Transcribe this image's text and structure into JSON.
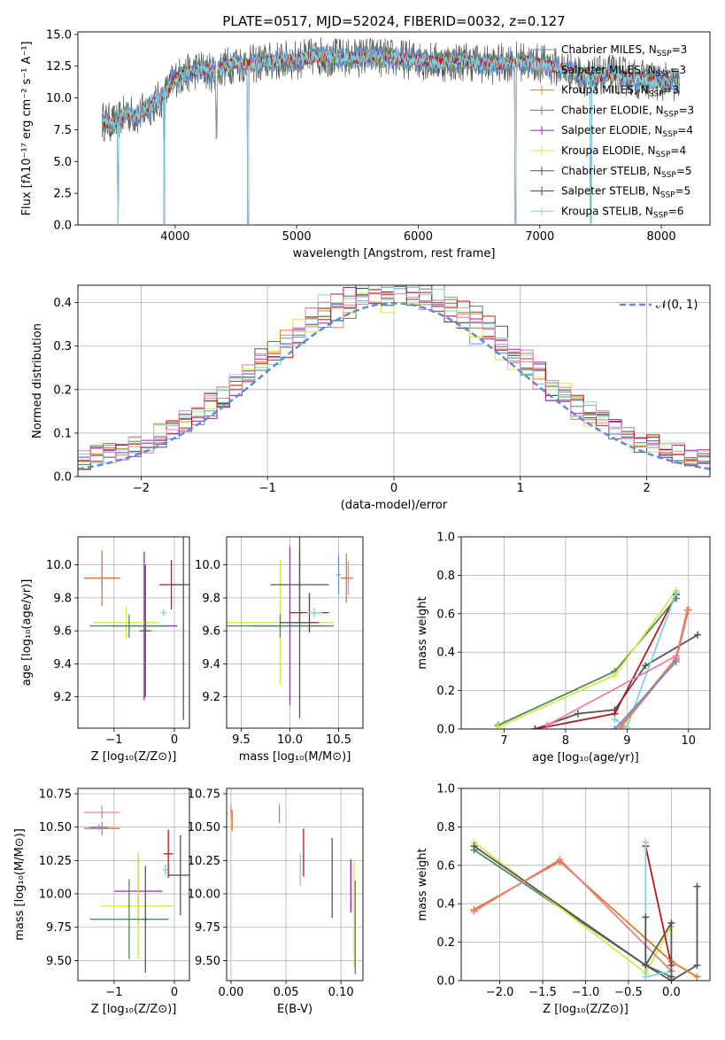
{
  "colors": {
    "chabrier_miles": "#6b8fd6",
    "salpeter_miles": "#e87f7f",
    "kroupa_miles": "#e07b28",
    "chabrier_elodie": "#4e8a55",
    "salpeter_elodie": "#9b25b5",
    "kroupa_elodie": "#d6e84a",
    "chabrier_stelib": "#555555",
    "salpeter_stelib": "#b31b1b",
    "kroupa_stelib": "#78d6e0",
    "gauss": "#5f8ad8",
    "pink": "#e87fb0"
  },
  "chart_data": [
    {
      "id": "spectrum",
      "type": "line",
      "title": "PLATE=0517, MJD=52024, FIBERID=0032, z=0.127",
      "xlabel": "wavelength [Angstrom, rest frame]",
      "ylabel": "Flux [fλ10⁻¹⁷ erg cm⁻² s⁻¹ A⁻¹]",
      "xlim": [
        3200,
        8400
      ],
      "ylim": [
        0,
        15.2
      ],
      "xticks": [
        "4000",
        "5000",
        "6000",
        "7000",
        "8000"
      ],
      "yticks": [
        "0.0",
        "2.5",
        "5.0",
        "7.5",
        "10.0",
        "12.5",
        "15.0"
      ],
      "legend_position": "right",
      "legend": [
        "Chabrier MILES, N_SSP=3",
        "Salpeter MILES, N_SSP=3",
        "Kroupa MILES, N_SSP=3",
        "Chabrier ELODIE, N_SSP=3",
        "Salpeter ELODIE, N_SSP=4",
        "Kroupa ELODIE, N_SSP=4",
        "Chabrier STELIB, N_SSP=5",
        "Salpeter STELIB, N_SSP=5",
        "Kroupa STELIB, N_SSP=6"
      ],
      "continuum": [
        [
          3400,
          8.2
        ],
        [
          3500,
          8.0
        ],
        [
          3600,
          8.8
        ],
        [
          3700,
          8.6
        ],
        [
          3800,
          9.4
        ],
        [
          3900,
          10.0
        ],
        [
          4000,
          11.6
        ],
        [
          4100,
          11.9
        ],
        [
          4200,
          12.3
        ],
        [
          4300,
          12.0
        ],
        [
          4400,
          12.4
        ],
        [
          4500,
          12.8
        ],
        [
          4600,
          12.6
        ],
        [
          4800,
          12.9
        ],
        [
          5000,
          13.0
        ],
        [
          5200,
          13.3
        ],
        [
          5400,
          13.1
        ],
        [
          5600,
          13.3
        ],
        [
          5800,
          13.1
        ],
        [
          6000,
          13.0
        ],
        [
          6200,
          12.8
        ],
        [
          6400,
          12.9
        ],
        [
          6600,
          12.6
        ],
        [
          6800,
          12.9
        ],
        [
          7000,
          12.7
        ],
        [
          7200,
          12.3
        ],
        [
          7400,
          11.6
        ],
        [
          7600,
          11.9
        ],
        [
          7800,
          11.5
        ],
        [
          8000,
          11.3
        ],
        [
          8150,
          11.0
        ]
      ],
      "dips": [
        [
          3530,
          0.1
        ],
        [
          3910,
          0.1
        ],
        [
          4340,
          6.8
        ],
        [
          4600,
          0.1
        ],
        [
          6800,
          0.1
        ],
        [
          7420,
          0.1
        ]
      ]
    },
    {
      "id": "residuals",
      "type": "histogram",
      "xlabel": "(data-model)/error",
      "ylabel": "Normed distribution",
      "xlim": [
        -2.5,
        2.5
      ],
      "ylim": [
        0,
        0.44
      ],
      "xticks": [
        "−2",
        "−1",
        "0",
        "1",
        "2"
      ],
      "yticks": [
        "0.0",
        "0.1",
        "0.2",
        "0.3",
        "0.4"
      ],
      "gauss_label": "𝒩(0, 1)",
      "bin_width": 0.1,
      "grid": true
    },
    {
      "id": "age_vs_Z",
      "type": "errorbar",
      "xlabel": "Z [log₁₀(Z/Z⊙)]",
      "ylabel": "age  [log₁₀(age/yr)]",
      "xlim": [
        -1.6,
        0.25
      ],
      "ylim": [
        9.01,
        10.17
      ],
      "xticks": [
        "−1",
        "0"
      ],
      "xtickvals": [
        -1,
        0
      ],
      "yticks": [
        "9.2",
        "9.4",
        "9.6",
        "9.8",
        "10.0"
      ],
      "ytickvals": [
        9.2,
        9.4,
        9.6,
        9.8,
        10.0
      ],
      "points": [
        {
          "c": "pink",
          "x": -1.2,
          "xe": 0.3,
          "y": 9.92,
          "ye": 0.07
        },
        {
          "c": "kroupa_miles",
          "x": -1.2,
          "xe": 0.3,
          "y": 9.92,
          "ye": 0.17
        },
        {
          "c": "salpeter_elodie",
          "x": -0.5,
          "xe": 0.55,
          "y": 9.63,
          "ye": 0.45
        },
        {
          "c": "kroupa_elodie",
          "x": -0.8,
          "xe": 0.55,
          "y": 9.65,
          "ye": 0.1
        },
        {
          "c": "chabrier_elodie",
          "x": -0.75,
          "xe": 0.65,
          "y": 9.63,
          "ye": 0.07
        },
        {
          "c": "chabrier_stelib",
          "x": -0.48,
          "xe": 0.1,
          "y": 9.6,
          "ye": 0.4
        },
        {
          "c": "salpeter_stelib",
          "x": -0.05,
          "xe": 0.2,
          "y": 9.88,
          "ye": 0.15
        },
        {
          "c": "chabrier_stelib",
          "x": 0.15,
          "xe": 0.2,
          "y": 9.88,
          "ye": 0.82
        },
        {
          "c": "kroupa_stelib",
          "x": -0.18,
          "xe": 0.05,
          "y": 9.71,
          "ye": 0.02
        }
      ]
    },
    {
      "id": "age_vs_mass",
      "type": "errorbar",
      "xlabel": "mass [log₁₀(M/M⊙)]",
      "ylabel": "",
      "xlim": [
        9.35,
        10.75
      ],
      "ylim": [
        9.01,
        10.17
      ],
      "xticks": [
        "9.5",
        "10.0",
        "10.5"
      ],
      "xtickvals": [
        9.5,
        10.0,
        10.5
      ],
      "yticks": [
        "9.2",
        "9.4",
        "9.6",
        "9.8",
        "10.0"
      ],
      "ytickvals": [
        9.2,
        9.4,
        9.6,
        9.8,
        10.0
      ],
      "points": [
        {
          "c": "pink",
          "x": 10.6,
          "xe": 0.05,
          "y": 9.92,
          "ye": 0.1
        },
        {
          "c": "kroupa_miles",
          "x": 10.58,
          "xe": 0.06,
          "y": 9.92,
          "ye": 0.15
        },
        {
          "c": "kroupa_elodie",
          "x": 9.9,
          "xe": 0.55,
          "y": 9.65,
          "ye": 0.38
        },
        {
          "c": "salpeter_elodie",
          "x": 10.0,
          "xe": 0.38,
          "y": 9.63,
          "ye": 0.48
        },
        {
          "c": "chabrier_elodie",
          "x": 9.9,
          "xe": 0.55,
          "y": 9.63,
          "ye": 0.07
        },
        {
          "c": "chabrier_stelib",
          "x": 10.1,
          "xe": 0.3,
          "y": 9.88,
          "ye": 0.22
        },
        {
          "c": "salpeter_stelib",
          "x": 10.2,
          "xe": 0.2,
          "y": 9.71,
          "ye": 0.12
        },
        {
          "c": "chabrier_stelib",
          "x": 10.1,
          "xe": 0.2,
          "y": 9.65,
          "ye": 0.58
        },
        {
          "c": "kroupa_stelib",
          "x": 10.25,
          "xe": 0.08,
          "y": 9.71,
          "ye": 0.03
        },
        {
          "c": "chabrier_miles",
          "x": 10.5,
          "xe": 0.02,
          "y": 9.94,
          "ye": 0.12
        }
      ]
    },
    {
      "id": "mass_weight_vs_age",
      "type": "line",
      "xlabel": "age  [log₁₀(age/yr)]",
      "ylabel": "mass weight",
      "xlim": [
        6.3,
        10.35
      ],
      "ylim": [
        0,
        1
      ],
      "xticks": [
        "7",
        "8",
        "9",
        "10"
      ],
      "xtickvals": [
        7,
        8,
        9,
        10
      ],
      "yticks": [
        "0.0",
        "0.2",
        "0.4",
        "0.6",
        "0.8",
        "1.0"
      ],
      "ytickvals": [
        0,
        0.2,
        0.4,
        0.6,
        0.8,
        1.0
      ],
      "series": [
        {
          "c": "chabrier_elodie",
          "x": [
            6.9,
            8.8,
            9.8
          ],
          "y": [
            0.02,
            0.3,
            0.68
          ]
        },
        {
          "c": "kroupa_elodie",
          "x": [
            6.9,
            8.8,
            9.8
          ],
          "y": [
            0.01,
            0.28,
            0.72
          ]
        },
        {
          "c": "chabrier_stelib",
          "x": [
            7.5,
            8.2,
            8.8,
            9.3,
            10.15
          ],
          "y": [
            0.0,
            0.08,
            0.1,
            0.33,
            0.49
          ]
        },
        {
          "c": "salpeter_stelib",
          "x": [
            7.5,
            8.8,
            9.8
          ],
          "y": [
            0.0,
            0.08,
            0.7
          ]
        },
        {
          "c": "kroupa_stelib",
          "x": [
            8.8,
            9.0,
            9.8
          ],
          "y": [
            0.05,
            0.01,
            0.71
          ]
        },
        {
          "c": "kroupa_miles",
          "x": [
            8.9,
            9.8,
            10.0
          ],
          "y": [
            0.01,
            0.36,
            0.62
          ]
        },
        {
          "c": "salpeter_miles",
          "x": [
            8.9,
            9.8,
            9.98
          ],
          "y": [
            0.02,
            0.37,
            0.62
          ]
        },
        {
          "c": "pink",
          "x": [
            7.7,
            9.8
          ],
          "y": [
            0.02,
            0.38
          ]
        },
        {
          "c": "chabrier_miles",
          "x": [
            8.8,
            9.8
          ],
          "y": [
            0.0,
            0.35
          ]
        }
      ]
    },
    {
      "id": "mass_vs_Z",
      "type": "errorbar",
      "xlabel": "Z [log₁₀(Z/Z⊙)]",
      "ylabel": "mass [log₁₀(M/M⊙)]",
      "xlim": [
        -1.6,
        0.25
      ],
      "ylim": [
        9.35,
        10.79
      ],
      "xticks": [
        "−1",
        "0"
      ],
      "xtickvals": [
        -1,
        0
      ],
      "yticks": [
        "9.50",
        "9.75",
        "10.00",
        "10.25",
        "10.50",
        "10.75"
      ],
      "ytickvals": [
        9.5,
        9.75,
        10.0,
        10.25,
        10.5,
        10.75
      ],
      "points": [
        {
          "c": "pink",
          "x": -1.2,
          "xe": 0.3,
          "y": 10.61,
          "ye": 0.05
        },
        {
          "c": "kroupa_miles",
          "x": -1.2,
          "xe": 0.3,
          "y": 10.49,
          "ye": 0.05
        },
        {
          "c": "chabrier_miles",
          "x": -1.25,
          "xe": 0.15,
          "y": 10.5,
          "ye": 0.02
        },
        {
          "c": "salpeter_elodie",
          "x": -0.6,
          "xe": 0.4,
          "y": 10.02,
          "ye": 0.25
        },
        {
          "c": "kroupa_elodie",
          "x": -0.6,
          "xe": 0.6,
          "y": 9.91,
          "ye": 0.4
        },
        {
          "c": "chabrier_elodie",
          "x": -0.75,
          "xe": 0.65,
          "y": 9.81,
          "ye": 0.3
        },
        {
          "c": "chabrier_stelib",
          "x": -0.48,
          "xe": 0.03,
          "y": 9.81,
          "ye": 0.4
        },
        {
          "c": "salpeter_stelib",
          "x": -0.1,
          "xe": 0.08,
          "y": 10.3,
          "ye": 0.18
        },
        {
          "c": "chabrier_stelib",
          "x": 0.1,
          "xe": 0.2,
          "y": 10.14,
          "ye": 0.3
        },
        {
          "c": "kroupa_stelib",
          "x": -0.15,
          "xe": 0.04,
          "y": 10.18,
          "ye": 0.04
        }
      ]
    },
    {
      "id": "mass_vs_EBV",
      "type": "errorbar",
      "xlabel": "E(B-V)",
      "ylabel": "",
      "xlim": [
        -0.004,
        0.12
      ],
      "ylim": [
        9.35,
        10.79
      ],
      "xticks": [
        "0.00",
        "0.05",
        "0.10"
      ],
      "xtickvals": [
        0,
        0.05,
        0.1
      ],
      "yticks": [
        "9.50",
        "9.75",
        "10.00",
        "10.25",
        "10.50",
        "10.75"
      ],
      "ytickvals": [
        9.5,
        9.75,
        10.0,
        10.25,
        10.5,
        10.75
      ],
      "points": [
        {
          "c": "kroupa_miles",
          "x": 0.001,
          "xe": 0,
          "y": 10.55,
          "ye": 0.08
        },
        {
          "c": "pink",
          "x": 0.0,
          "xe": 0,
          "y": 10.62,
          "ye": 0.05
        },
        {
          "c": "chabrier_miles",
          "x": 0.044,
          "xe": 0,
          "y": 10.6,
          "ye": 0.07
        },
        {
          "c": "kroupa_stelib",
          "x": 0.063,
          "xe": 0,
          "y": 10.18,
          "ye": 0.12
        },
        {
          "c": "salpeter_stelib",
          "x": 0.066,
          "xe": 0,
          "y": 10.31,
          "ye": 0.18
        },
        {
          "c": "chabrier_stelib",
          "x": 0.092,
          "xe": 0,
          "y": 10.12,
          "ye": 0.3
        },
        {
          "c": "salpeter_elodie",
          "x": 0.109,
          "xe": 0,
          "y": 10.06,
          "ye": 0.2
        },
        {
          "c": "kroupa_elodie",
          "x": 0.112,
          "xe": 0,
          "y": 9.85,
          "ye": 0.4
        },
        {
          "c": "chabrier_elodie",
          "x": 0.113,
          "xe": 0,
          "y": 9.75,
          "ye": 0.35
        }
      ]
    },
    {
      "id": "mass_weight_vs_Z",
      "type": "line",
      "xlabel": "Z [log₁₀(Z/Z⊙)]",
      "ylabel": "mass weight",
      "xlim": [
        -2.45,
        0.45
      ],
      "ylim": [
        0,
        1
      ],
      "xticks": [
        "−2.0",
        "−1.5",
        "−1.0",
        "−0.5",
        "0.0"
      ],
      "xtickvals": [
        -2.0,
        -1.5,
        -1.0,
        -0.5,
        0.0
      ],
      "yticks": [
        "0.0",
        "0.2",
        "0.4",
        "0.6",
        "0.8",
        "1.0"
      ],
      "ytickvals": [
        0,
        0.2,
        0.4,
        0.6,
        0.8,
        1.0
      ],
      "series": [
        {
          "c": "chabrier_elodie",
          "x": [
            -2.3,
            -0.3,
            0.0
          ],
          "y": [
            0.68,
            0.08,
            0.02
          ]
        },
        {
          "c": "kroupa_elodie",
          "x": [
            -2.3,
            -0.3,
            0.0
          ],
          "y": [
            0.72,
            0.04,
            0.28
          ]
        },
        {
          "c": "chabrier_stelib",
          "x": [
            -2.3,
            -0.3,
            0.0,
            0.3,
            0.3
          ],
          "y": [
            0.7,
            0.08,
            0.0,
            0.08,
            0.49
          ]
        },
        {
          "c": "salpeter_stelib",
          "x": [
            -0.3,
            0.0,
            0.0
          ],
          "y": [
            0.7,
            0.08,
            0.1
          ]
        },
        {
          "c": "kroupa_stelib",
          "x": [
            -0.3,
            -0.3,
            0.0
          ],
          "y": [
            0.72,
            0.02,
            0.05
          ]
        },
        {
          "c": "kroupa_miles",
          "x": [
            -2.3,
            -1.3,
            0.0,
            0.3
          ],
          "y": [
            0.37,
            0.62,
            0.1,
            0.02
          ]
        },
        {
          "c": "salpeter_miles",
          "x": [
            -2.3,
            -1.3,
            0.0
          ],
          "y": [
            0.36,
            0.63,
            0.05
          ]
        },
        {
          "c": "chabrier_stelib",
          "x": [
            -0.3,
            -0.3,
            0.0,
            0.0
          ],
          "y": [
            0.33,
            0.08,
            0.3,
            0.02
          ]
        }
      ]
    }
  ]
}
